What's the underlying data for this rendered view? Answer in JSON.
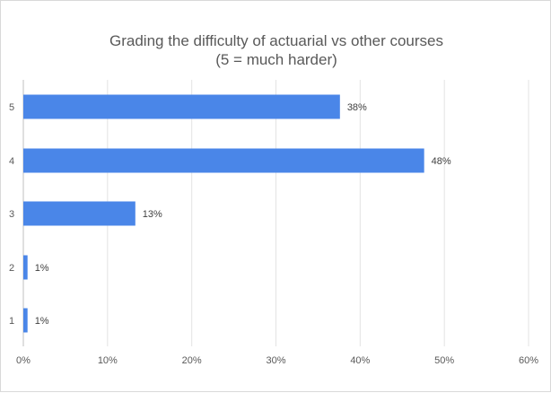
{
  "chart_data": {
    "type": "bar",
    "orientation": "horizontal",
    "title": "Grading the difficulty of actuarial vs other courses",
    "subtitle": "(5 = much harder)",
    "categories": [
      "5",
      "4",
      "3",
      "2",
      "1"
    ],
    "values": [
      37.6,
      47.6,
      13.3,
      0.5,
      0.5
    ],
    "data_labels": [
      "38%",
      "48%",
      "13%",
      "1%",
      "1%"
    ],
    "xlim": [
      0,
      60
    ],
    "x_ticks": [
      "0%",
      "10%",
      "20%",
      "30%",
      "40%",
      "50%",
      "60%"
    ],
    "grid": true,
    "legend": "none",
    "bar_color": "#4a86e8"
  }
}
